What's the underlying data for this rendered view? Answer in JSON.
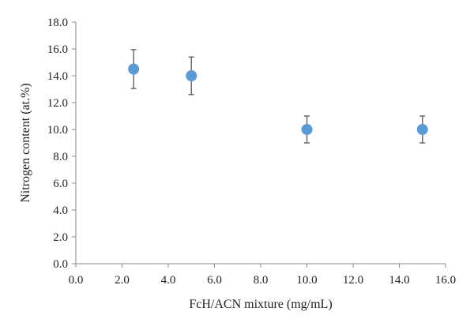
{
  "chart_data": {
    "type": "scatter",
    "title": "",
    "xlabel": "FcH/ACN mixture (mg/mL)",
    "ylabel": "Nitrogen content (at.%)",
    "xlim": [
      0,
      16
    ],
    "ylim": [
      0,
      18
    ],
    "xticks": [
      "0.0",
      "2.0",
      "4.0",
      "6.0",
      "8.0",
      "10.0",
      "12.0",
      "14.0",
      "16.0"
    ],
    "yticks": [
      "0.0",
      "2.0",
      "4.0",
      "6.0",
      "8.0",
      "10.0",
      "12.0",
      "14.0",
      "16.0",
      "18.0"
    ],
    "grid": false,
    "legend": "none",
    "marker_color": "#5b9bd5",
    "errorbar_color": "#6b6b6b",
    "series": [
      {
        "x": [
          2.5,
          5,
          10,
          15
        ],
        "y": [
          14.5,
          14.0,
          10.0,
          10.0
        ],
        "yerr_low": [
          13.05,
          12.6,
          9.0,
          9.0
        ],
        "yerr_high": [
          15.95,
          15.4,
          11.0,
          11.0
        ]
      }
    ]
  }
}
